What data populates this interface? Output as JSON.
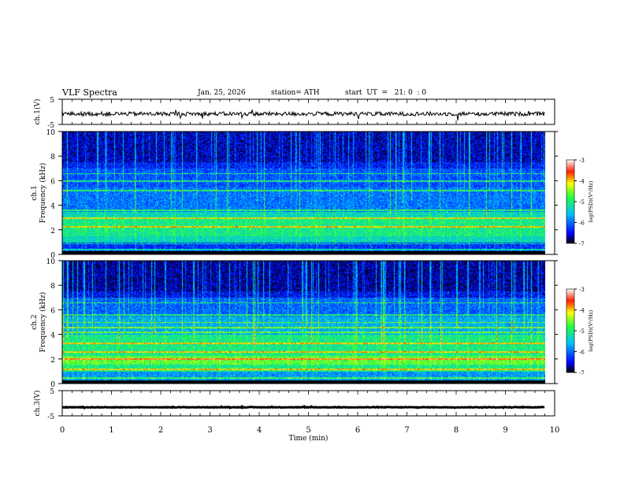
{
  "header": {
    "title": "VLF  Spectra",
    "date": "Jan. 25, 2026",
    "station": "station= ATH",
    "start": "start  UT  =   21: 0  : 0"
  },
  "chart_data": [
    {
      "type": "line",
      "id": "ch1-waveform",
      "ylabel": "ch.1(V)",
      "ylim": [
        -5,
        5
      ],
      "yticks": [
        "5",
        "-5"
      ],
      "xlim": [
        0,
        10
      ],
      "baseline": -0.8
    },
    {
      "type": "heatmap",
      "id": "ch1-spectrogram",
      "ylabel": "Frequency (kHz)",
      "channel_label": "ch.1",
      "ylim": [
        0,
        10
      ],
      "yticks": [
        "0",
        "2",
        "4",
        "6",
        "8",
        "10"
      ],
      "xlim": [
        0,
        9.8
      ],
      "colorbar": {
        "label": "log(PSD)(V²/Hz)",
        "ticks": [
          "-3",
          "-4",
          "-5",
          "-6",
          "-7"
        ],
        "range": [
          -7,
          -3
        ]
      }
    },
    {
      "type": "heatmap",
      "id": "ch2-spectrogram",
      "ylabel": "Frequency (kHz)",
      "channel_label": "ch.2",
      "ylim": [
        0,
        10
      ],
      "yticks": [
        "0",
        "2",
        "4",
        "6",
        "8",
        "10"
      ],
      "xlim": [
        0,
        9.8
      ],
      "colorbar": {
        "label": "log(PSD)(V²/Hz)",
        "ticks": [
          "-3",
          "-4",
          "-5",
          "-6",
          "-7"
        ],
        "range": [
          -7,
          -3
        ]
      }
    },
    {
      "type": "line",
      "id": "ch3-waveform",
      "ylabel": "ch.3(V)",
      "ylim": [
        -5,
        5
      ],
      "yticks": [
        "5",
        "-5"
      ],
      "xlim": [
        0,
        10
      ],
      "baseline": -1.6
    }
  ],
  "xaxis": {
    "label": "Time  (min)",
    "ticks": [
      "0",
      "1",
      "2",
      "3",
      "4",
      "5",
      "6",
      "7",
      "8",
      "9",
      "10"
    ]
  },
  "colors": {
    "scale": [
      "#000040",
      "#0000ff",
      "#00a0ff",
      "#00ffc0",
      "#30ff30",
      "#ffff00",
      "#ff8000",
      "#ff0000",
      "#ffffff"
    ]
  }
}
